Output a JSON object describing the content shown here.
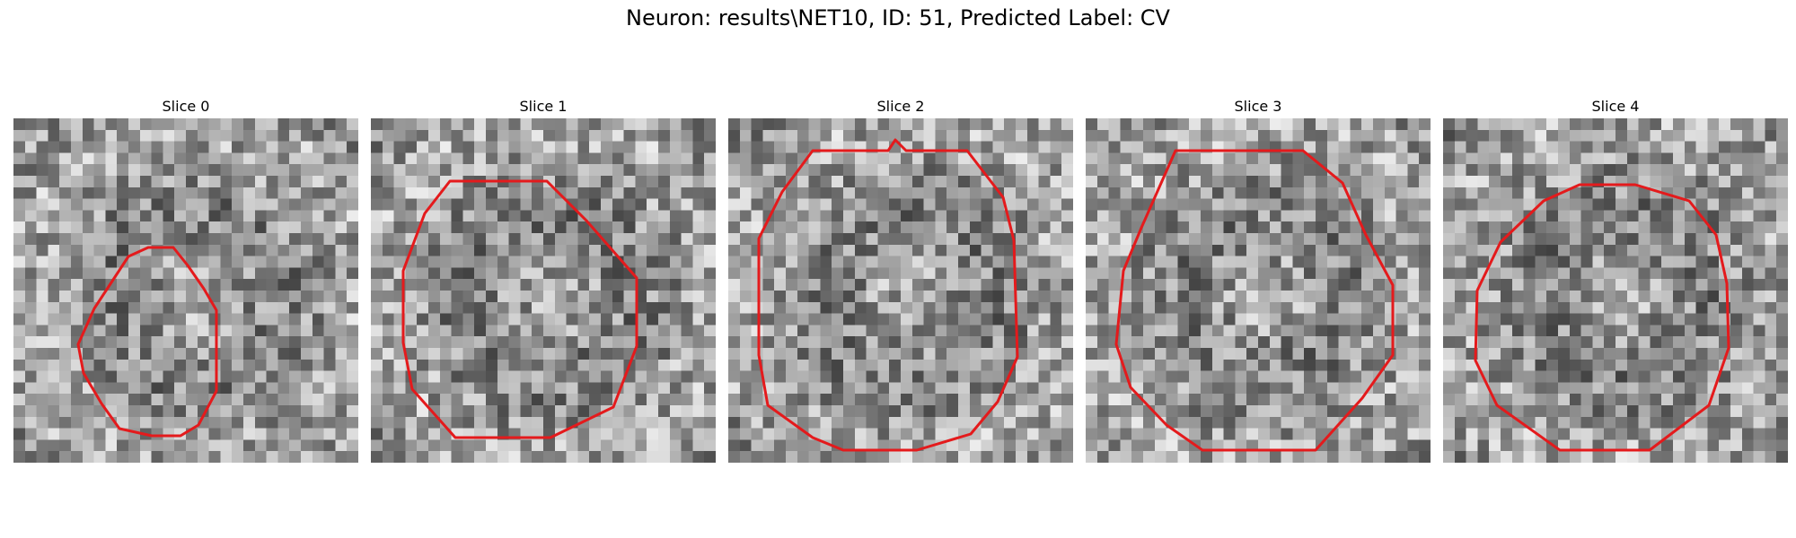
{
  "figure": {
    "title": "Neuron: results\\NET10, ID: 51, Predicted Label: CV"
  },
  "overlay_color": "#e41a1c",
  "slices": [
    {
      "label": "Slice 0"
    },
    {
      "label": "Slice 1"
    },
    {
      "label": "Slice 2"
    },
    {
      "label": "Slice 3"
    },
    {
      "label": "Slice 4"
    }
  ]
}
